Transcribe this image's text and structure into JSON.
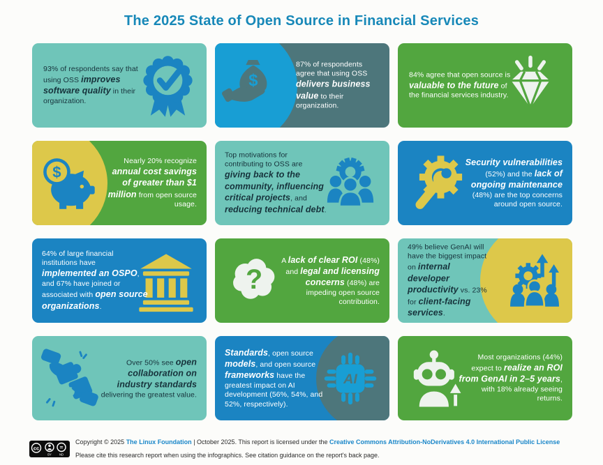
{
  "page": {
    "title": "The 2025 State of Open Source in Financial Services"
  },
  "colors": {
    "title": "#1788b8",
    "teal_tile": "#6fc5b9",
    "slate_tile": "#4d767b",
    "green_tile": "#52a63f",
    "blue_tile": "#1b84c2",
    "bright_blue": "#189ed4",
    "yellow": "#ddc84a",
    "dark_text": "#16323b",
    "link": "#1b87c9"
  },
  "tiles": [
    {
      "icon": "badge-check-icon",
      "segments": [
        {
          "t": "93% of respondents say that using OSS "
        },
        {
          "t": "improves software quality",
          "em": true
        },
        {
          "t": " in their organization."
        }
      ]
    },
    {
      "icon": "money-bag-hand-icon",
      "segments": [
        {
          "t": "87% of respondents agree that using OSS "
        },
        {
          "t": "delivers business value",
          "em": true
        },
        {
          "t": " to their organization."
        }
      ]
    },
    {
      "icon": "diamond-icon",
      "segments": [
        {
          "t": "84% agree that open source is "
        },
        {
          "t": "valuable to the future",
          "em": true
        },
        {
          "t": " of the financial services industry."
        }
      ]
    },
    {
      "icon": "piggy-bank-icon",
      "segments": [
        {
          "t": "Nearly 20% recognize "
        },
        {
          "t": "annual cost savings of greater than $1 million",
          "em": true
        },
        {
          "t": " from open source usage."
        }
      ]
    },
    {
      "icon": "community-icon",
      "segments": [
        {
          "t": "Top motivations for contributing to OSS are "
        },
        {
          "t": "giving back to the community, influencing critical projects",
          "em": true
        },
        {
          "t": ", and "
        },
        {
          "t": "reducing technical debt",
          "em": true
        },
        {
          "t": "."
        }
      ]
    },
    {
      "icon": "gear-wrench-icon",
      "segments": [
        {
          "t": "Security vulnerabilities",
          "em": true
        },
        {
          "t": " (52%) and the "
        },
        {
          "t": "lack of ongoing maintenance",
          "em": true
        },
        {
          "t": " (48%) are the top concerns around open source."
        }
      ]
    },
    {
      "icon": "bank-icon",
      "segments": [
        {
          "t": "64% of large financial institutions have "
        },
        {
          "t": "implemented an OSPO",
          "em": true
        },
        {
          "t": ", and 67% have joined or associated with "
        },
        {
          "t": "open source organizations",
          "em": true
        },
        {
          "t": "."
        }
      ]
    },
    {
      "icon": "brain-question-icon",
      "segments": [
        {
          "t": "A "
        },
        {
          "t": "lack of clear ROI",
          "em": true
        },
        {
          "t": " (48%) and "
        },
        {
          "t": "legal and licensing concerns",
          "em": true
        },
        {
          "t": " (48%) are impeding open source contribution."
        }
      ]
    },
    {
      "icon": "team-growth-icon",
      "segments": [
        {
          "t": "49% believe GenAI will have the biggest impact on "
        },
        {
          "t": "internal developer productivity",
          "em": true
        },
        {
          "t": " vs. 23% for "
        },
        {
          "t": "client-facing services",
          "em": true
        },
        {
          "t": "."
        }
      ]
    },
    {
      "icon": "puzzle-collaboration-icon",
      "segments": [
        {
          "t": "Over 50% see "
        },
        {
          "t": "open collaboration on industry standards",
          "em": true
        },
        {
          "t": " delivering the greatest value."
        }
      ]
    },
    {
      "icon": "ai-chip-icon",
      "segments": [
        {
          "t": "Standards",
          "em": true
        },
        {
          "t": ", open source "
        },
        {
          "t": "models",
          "em": true
        },
        {
          "t": ", and open source "
        },
        {
          "t": "frameworks",
          "em": true
        },
        {
          "t": " have the greatest impact on AI development (56%, 54%, and 52%, respectively)."
        }
      ]
    },
    {
      "icon": "robot-icon",
      "segments": [
        {
          "t": "Most organizations (44%) expect to "
        },
        {
          "t": "realize an ROI from GenAI in 2–5 years",
          "em": true
        },
        {
          "t": ", with 18% already seeing returns."
        }
      ]
    }
  ],
  "footer": {
    "badge": "CC BY-ND",
    "line1": [
      {
        "t": "Copyright © 2025 "
      },
      {
        "t": "The Linux Foundation",
        "link": true
      },
      {
        "t": " | October 2025. This report is licensed under the "
      },
      {
        "t": "Creative Commons Attribution-NoDerivatives 4.0 International Public License",
        "link": true
      }
    ],
    "line2": "Please cite this research report when using the infographics. See citation guidance on the report's back page."
  }
}
